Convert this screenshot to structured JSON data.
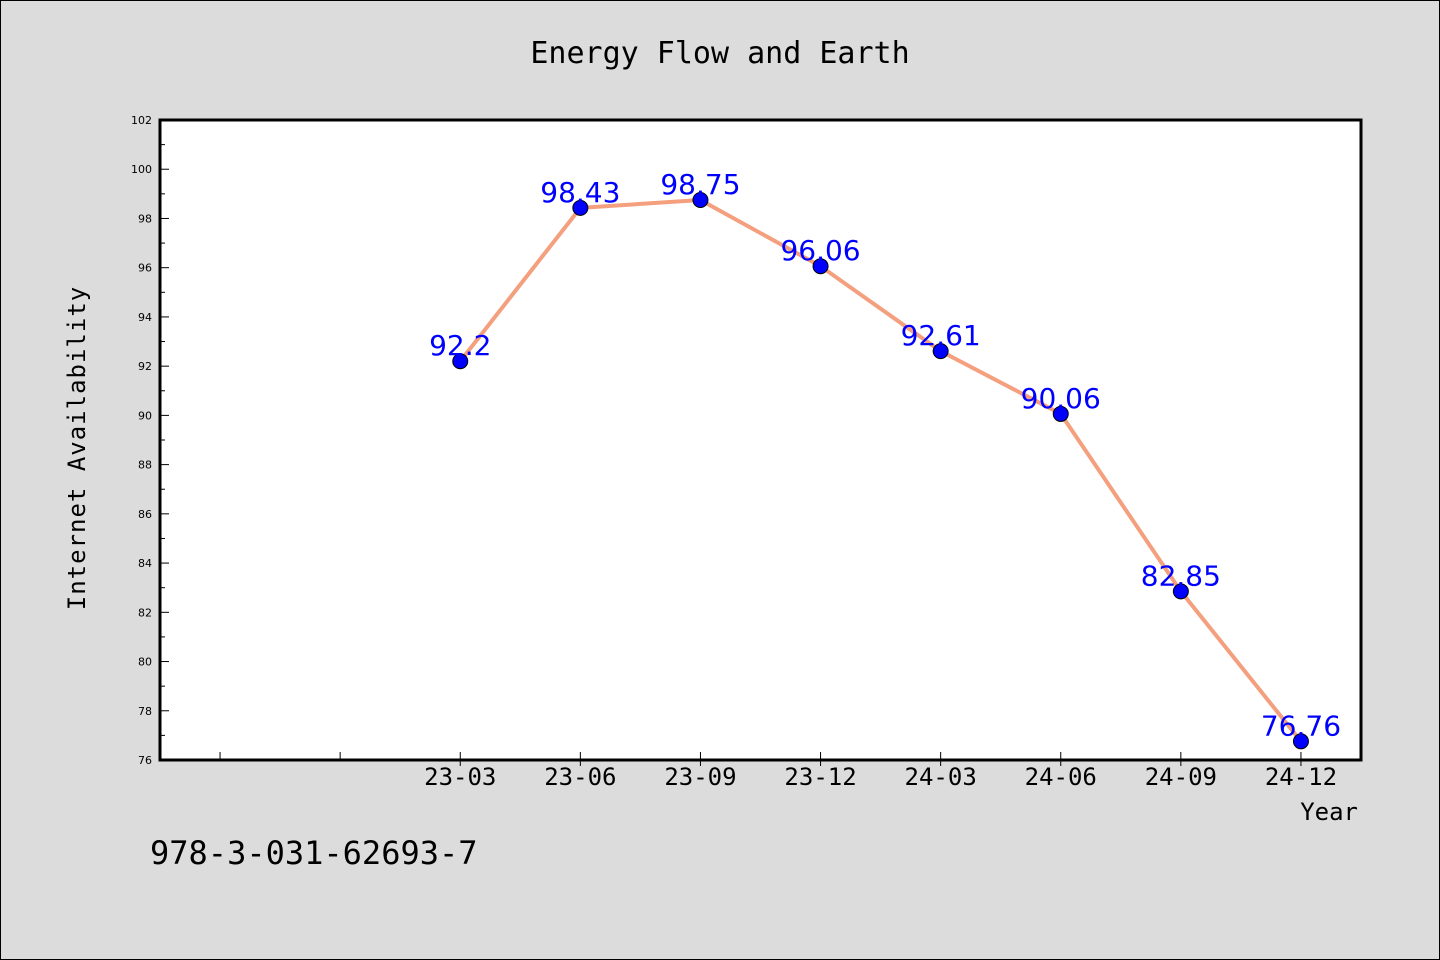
{
  "chart_data": {
    "type": "line",
    "title": "Energy Flow and Earth",
    "xlabel": "Year",
    "ylabel": "Internet Availability",
    "categories": [
      "23-03",
      "23-06",
      "23-09",
      "23-12",
      "24-03",
      "24-06",
      "24-09",
      "24-12"
    ],
    "values": [
      92.2,
      98.43,
      98.75,
      96.06,
      92.61,
      90.06,
      82.85,
      76.76
    ],
    "data_labels": [
      "92.2",
      "98.43",
      "98.75",
      "96.06",
      "92.61",
      "90.06",
      "82.85",
      "76.76"
    ],
    "ylim": [
      76,
      102
    ],
    "yticks": [
      "76",
      "78",
      "80",
      "82",
      "84",
      "86",
      "88",
      "90",
      "92",
      "94",
      "96",
      "98",
      "100",
      "102"
    ],
    "xlim_slots": [
      -2.5,
      7.5
    ],
    "grid": false,
    "legend": "none",
    "line_color": "#f4a07e",
    "marker_color": "#0000ff",
    "label_color": "#0000ff"
  },
  "footer": {
    "isbn": "978-3-031-62693-7"
  }
}
